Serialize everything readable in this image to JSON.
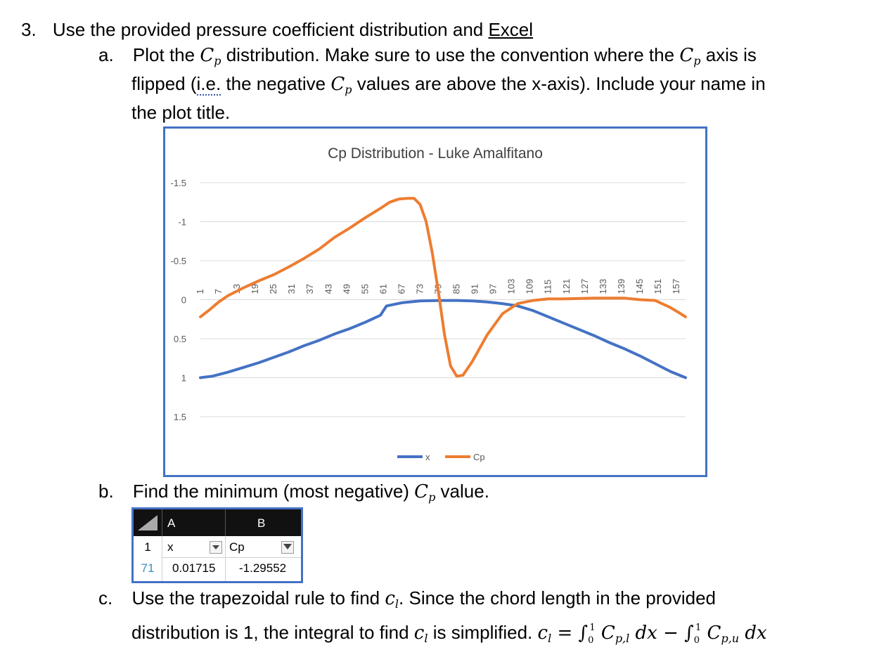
{
  "question": {
    "number": "3.",
    "intro": "Use the provided pressure coefficient distribution and ",
    "intro_link": "Excel"
  },
  "part_a": {
    "letter": "a.",
    "l1_pre": "Plot the ",
    "l1_mid": " distribution. Make sure to use the convention where the ",
    "l1_post": " axis is",
    "l2_pre": "flipped (",
    "l2_ie": "i.e.",
    "l2_mid": " the negative ",
    "l2_post": " values are above the x-axis). Include your name in",
    "l3": "the plot title."
  },
  "part_b": {
    "letter": "b.",
    "pre": "Find the minimum (most negative) ",
    "post": " value."
  },
  "part_c": {
    "letter": "c.",
    "l1_pre": "Use the trapezoidal rule to find ",
    "l1_post": ". Since the chord length in the provided",
    "l2_pre": "distribution is 1, the integral to find ",
    "l2_post": " is simplified. ",
    "formula_eq": " = ",
    "integral_lower": "0",
    "integral_upper": "1",
    "dx": "dx",
    "minus": " − "
  },
  "math": {
    "C": "C",
    "p": "p",
    "c": "c",
    "l": "l",
    "pl": "p,l",
    "pu": "p,u",
    "integral": "∫"
  },
  "excel": {
    "col_a": "A",
    "col_b": "B",
    "row1_num": "1",
    "row1_a": "x",
    "row1_b": "Cp",
    "row2_num": "71",
    "row2_a": "0.01715",
    "row2_b": "-1.29552",
    "row2_num_color": "#3a8ec4"
  },
  "chart_data": {
    "type": "line",
    "title": "Cp Distribution - Luke Amalfitano",
    "ylim": [
      -1.5,
      1.5
    ],
    "y_reversed": true,
    "yticks": [
      "-1.5",
      "-1",
      "-0.5",
      "0",
      "0.5",
      "1",
      "1.5"
    ],
    "xticks": [
      "1",
      "7",
      "13",
      "19",
      "25",
      "31",
      "37",
      "43",
      "49",
      "55",
      "61",
      "67",
      "73",
      "79",
      "85",
      "91",
      "97",
      "103",
      "109",
      "115",
      "121",
      "127",
      "133",
      "139",
      "145",
      "151",
      "157"
    ],
    "x_range": [
      1,
      160
    ],
    "grid": true,
    "legend_position": "bottom",
    "series": [
      {
        "name": "x",
        "color": "#4472c4",
        "points": [
          [
            1,
            1.0
          ],
          [
            5,
            0.98
          ],
          [
            10,
            0.93
          ],
          [
            15,
            0.87
          ],
          [
            20,
            0.81
          ],
          [
            25,
            0.74
          ],
          [
            30,
            0.67
          ],
          [
            35,
            0.59
          ],
          [
            40,
            0.52
          ],
          [
            45,
            0.44
          ],
          [
            50,
            0.37
          ],
          [
            55,
            0.29
          ],
          [
            60,
            0.2
          ],
          [
            62,
            0.08
          ],
          [
            67,
            0.04
          ],
          [
            73,
            0.015
          ],
          [
            80,
            0.01
          ],
          [
            85,
            0.01
          ],
          [
            90,
            0.015
          ],
          [
            95,
            0.03
          ],
          [
            100,
            0.05
          ],
          [
            105,
            0.08
          ],
          [
            110,
            0.14
          ],
          [
            115,
            0.22
          ],
          [
            120,
            0.3
          ],
          [
            125,
            0.38
          ],
          [
            130,
            0.46
          ],
          [
            135,
            0.55
          ],
          [
            140,
            0.63
          ],
          [
            145,
            0.72
          ],
          [
            150,
            0.82
          ],
          [
            155,
            0.92
          ],
          [
            160,
            1.0
          ]
        ]
      },
      {
        "name": "Cp",
        "color": "#ed7d31",
        "points": [
          [
            1,
            0.22
          ],
          [
            4,
            0.13
          ],
          [
            7,
            0.03
          ],
          [
            10,
            -0.05
          ],
          [
            15,
            -0.15
          ],
          [
            20,
            -0.24
          ],
          [
            25,
            -0.32
          ],
          [
            30,
            -0.42
          ],
          [
            35,
            -0.53
          ],
          [
            40,
            -0.65
          ],
          [
            45,
            -0.8
          ],
          [
            50,
            -0.92
          ],
          [
            55,
            -1.05
          ],
          [
            60,
            -1.17
          ],
          [
            63,
            -1.25
          ],
          [
            66,
            -1.29
          ],
          [
            69,
            -1.3
          ],
          [
            71,
            -1.3
          ],
          [
            73,
            -1.22
          ],
          [
            75,
            -1.0
          ],
          [
            77,
            -0.6
          ],
          [
            79,
            -0.1
          ],
          [
            81,
            0.45
          ],
          [
            83,
            0.85
          ],
          [
            85,
            0.98
          ],
          [
            87,
            0.97
          ],
          [
            90,
            0.8
          ],
          [
            95,
            0.45
          ],
          [
            100,
            0.18
          ],
          [
            105,
            0.05
          ],
          [
            110,
            0.01
          ],
          [
            115,
            -0.01
          ],
          [
            120,
            -0.01
          ],
          [
            130,
            -0.02
          ],
          [
            140,
            -0.02
          ],
          [
            145,
            0.0
          ],
          [
            150,
            0.01
          ],
          [
            155,
            0.1
          ],
          [
            158,
            0.17
          ],
          [
            160,
            0.22
          ]
        ]
      }
    ]
  }
}
